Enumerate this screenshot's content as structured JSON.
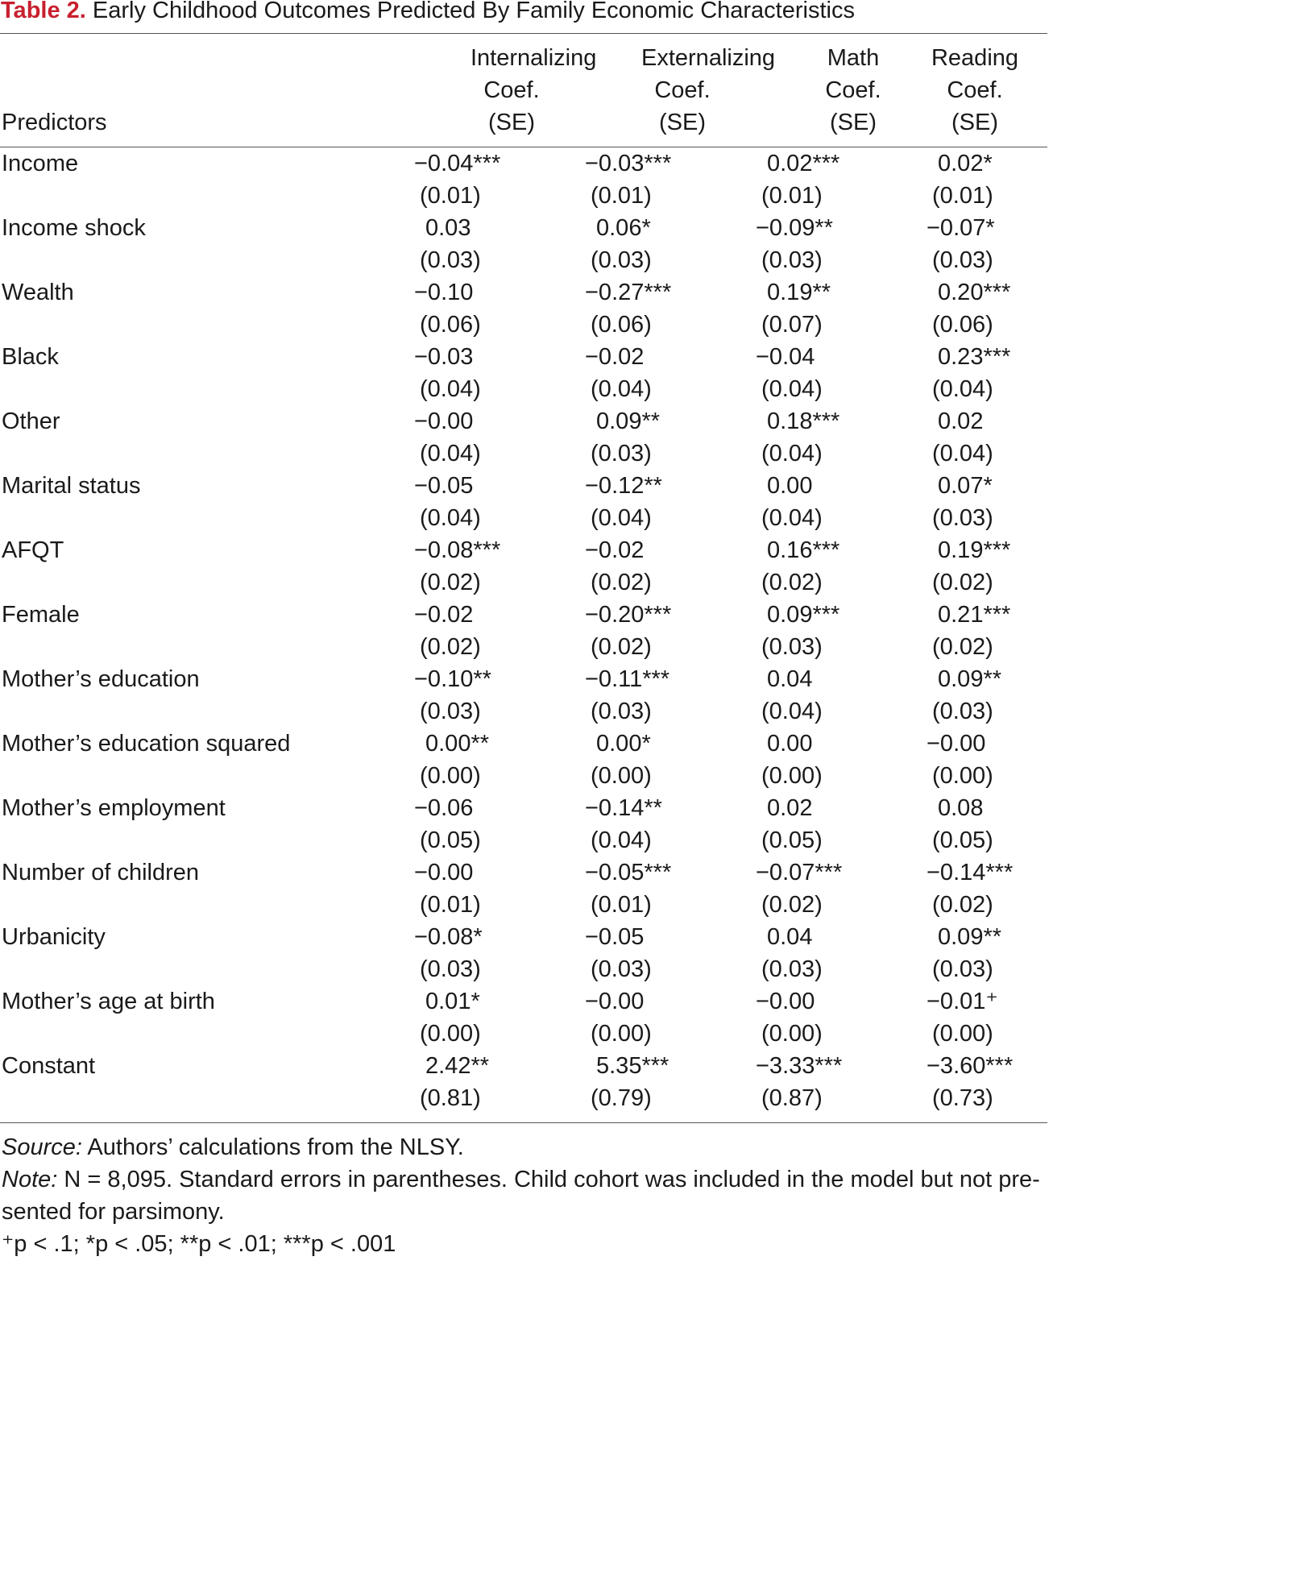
{
  "title": {
    "number": "Table 2.",
    "text": " Early Childhood Outcomes Predicted By Family Economic Characteristics"
  },
  "header": {
    "predictors": "Predictors",
    "columns": [
      {
        "line1": "Internalizing",
        "line2": "Coef.",
        "line3": "(SE)"
      },
      {
        "line1": "Externalizing",
        "line2": "Coef.",
        "line3": "(SE)"
      },
      {
        "line1": "Math",
        "line2": "Coef.",
        "line3": "(SE)"
      },
      {
        "line1": "Reading",
        "line2": "Coef.",
        "line3": "(SE)"
      }
    ]
  },
  "rows": [
    {
      "label": "Income",
      "coef": [
        "−0.04***",
        "−0.03***",
        "0.02***",
        "0.02*"
      ],
      "se": [
        "(0.01)",
        "(0.01)",
        "(0.01)",
        "(0.01)"
      ]
    },
    {
      "label": "Income shock",
      "coef": [
        "0.03",
        "0.06*",
        "−0.09**",
        "−0.07*"
      ],
      "se": [
        "(0.03)",
        "(0.03)",
        "(0.03)",
        "(0.03)"
      ]
    },
    {
      "label": "Wealth",
      "coef": [
        "−0.10",
        "−0.27***",
        "0.19**",
        "0.20***"
      ],
      "se": [
        "(0.06)",
        "(0.06)",
        "(0.07)",
        "(0.06)"
      ]
    },
    {
      "label": "Black",
      "coef": [
        "−0.03",
        "−0.02",
        "−0.04",
        "0.23***"
      ],
      "se": [
        "(0.04)",
        "(0.04)",
        "(0.04)",
        "(0.04)"
      ]
    },
    {
      "label": "Other",
      "coef": [
        "−0.00",
        "0.09**",
        "0.18***",
        "0.02"
      ],
      "se": [
        "(0.04)",
        "(0.03)",
        "(0.04)",
        "(0.04)"
      ]
    },
    {
      "label": "Marital status",
      "coef": [
        "−0.05",
        "−0.12**",
        "0.00",
        "0.07*"
      ],
      "se": [
        "(0.04)",
        "(0.04)",
        "(0.04)",
        "(0.03)"
      ]
    },
    {
      "label": "AFQT",
      "coef": [
        "−0.08***",
        "−0.02",
        "0.16***",
        "0.19***"
      ],
      "se": [
        "(0.02)",
        "(0.02)",
        "(0.02)",
        "(0.02)"
      ]
    },
    {
      "label": "Female",
      "coef": [
        "−0.02",
        "−0.20***",
        "0.09***",
        "0.21***"
      ],
      "se": [
        "(0.02)",
        "(0.02)",
        "(0.03)",
        "(0.02)"
      ]
    },
    {
      "label": "Mother’s education",
      "coef": [
        "−0.10**",
        "−0.11***",
        "0.04",
        "0.09**"
      ],
      "se": [
        "(0.03)",
        "(0.03)",
        "(0.04)",
        "(0.03)"
      ]
    },
    {
      "label": "Mother’s education squared",
      "coef": [
        "0.00**",
        "0.00*",
        "0.00",
        "−0.00"
      ],
      "se": [
        "(0.00)",
        "(0.00)",
        "(0.00)",
        "(0.00)"
      ]
    },
    {
      "label": "Mother’s employment",
      "coef": [
        "−0.06",
        "−0.14**",
        "0.02",
        "0.08"
      ],
      "se": [
        "(0.05)",
        "(0.04)",
        "(0.05)",
        "(0.05)"
      ]
    },
    {
      "label": "Number of children",
      "coef": [
        "−0.00",
        "−0.05***",
        "−0.07***",
        "−0.14***"
      ],
      "se": [
        "(0.01)",
        "(0.01)",
        "(0.02)",
        "(0.02)"
      ]
    },
    {
      "label": "Urbanicity",
      "coef": [
        "−0.08*",
        "−0.05",
        "0.04",
        "0.09**"
      ],
      "se": [
        "(0.03)",
        "(0.03)",
        "(0.03)",
        "(0.03)"
      ]
    },
    {
      "label": "Mother’s age at birth",
      "coef": [
        "0.01*",
        "−0.00",
        "−0.00",
        "−0.01⁺"
      ],
      "se": [
        "(0.00)",
        "(0.00)",
        "(0.00)",
        "(0.00)"
      ]
    },
    {
      "label": "Constant",
      "coef": [
        "2.42**",
        "5.35***",
        "−3.33***",
        "−3.60***"
      ],
      "se": [
        "(0.81)",
        "(0.79)",
        "(0.87)",
        "(0.73)"
      ]
    }
  ],
  "footnotes": {
    "source_label": "Source:",
    "source_text": " Authors’ calculations from the NLSY.",
    "note_label": "Note:",
    "note_text": " N = 8,095. Standard errors in parentheses. Child cohort was included in the model but not pre-",
    "note_text2": "sented for parsimony.",
    "sig": "⁺p < .1; *p < .05; **p < .01; ***p < .001"
  },
  "colors": {
    "table_number": "#c8202f",
    "rule": "#555555",
    "text": "#1a1a1a"
  }
}
